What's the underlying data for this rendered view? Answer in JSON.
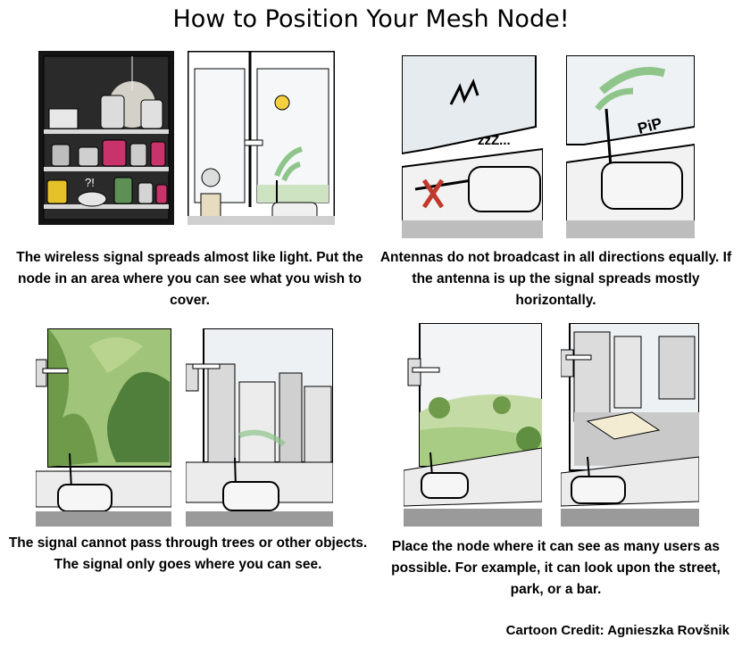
{
  "title": "How to Position Your Mesh Node!",
  "panels": {
    "light": {
      "caption": "The wireless signal spreads almost like light. Put the node in an area where you can see what you wish to cover.",
      "sketch_text": "?!"
    },
    "antenna": {
      "caption": "Antennas do not broadcast in all directions equally. If the antenna is up the signal spreads mostly horizontally.",
      "sketch_text_left": "zzZ...",
      "sketch_text_right": "PiP"
    },
    "trees": {
      "caption": "The signal cannot pass through trees or other objects. The signal only goes where you can see."
    },
    "users": {
      "caption": "Place the node where it can see as many users as possible. For example, it can look upon the street, park, or a bar."
    }
  },
  "credit": "Cartoon Credit: Agnieszka Rovšnik",
  "colors": {
    "signal_green": "#8fc58a",
    "cross_red": "#c0392b",
    "sun_yellow": "#f4d03f"
  }
}
